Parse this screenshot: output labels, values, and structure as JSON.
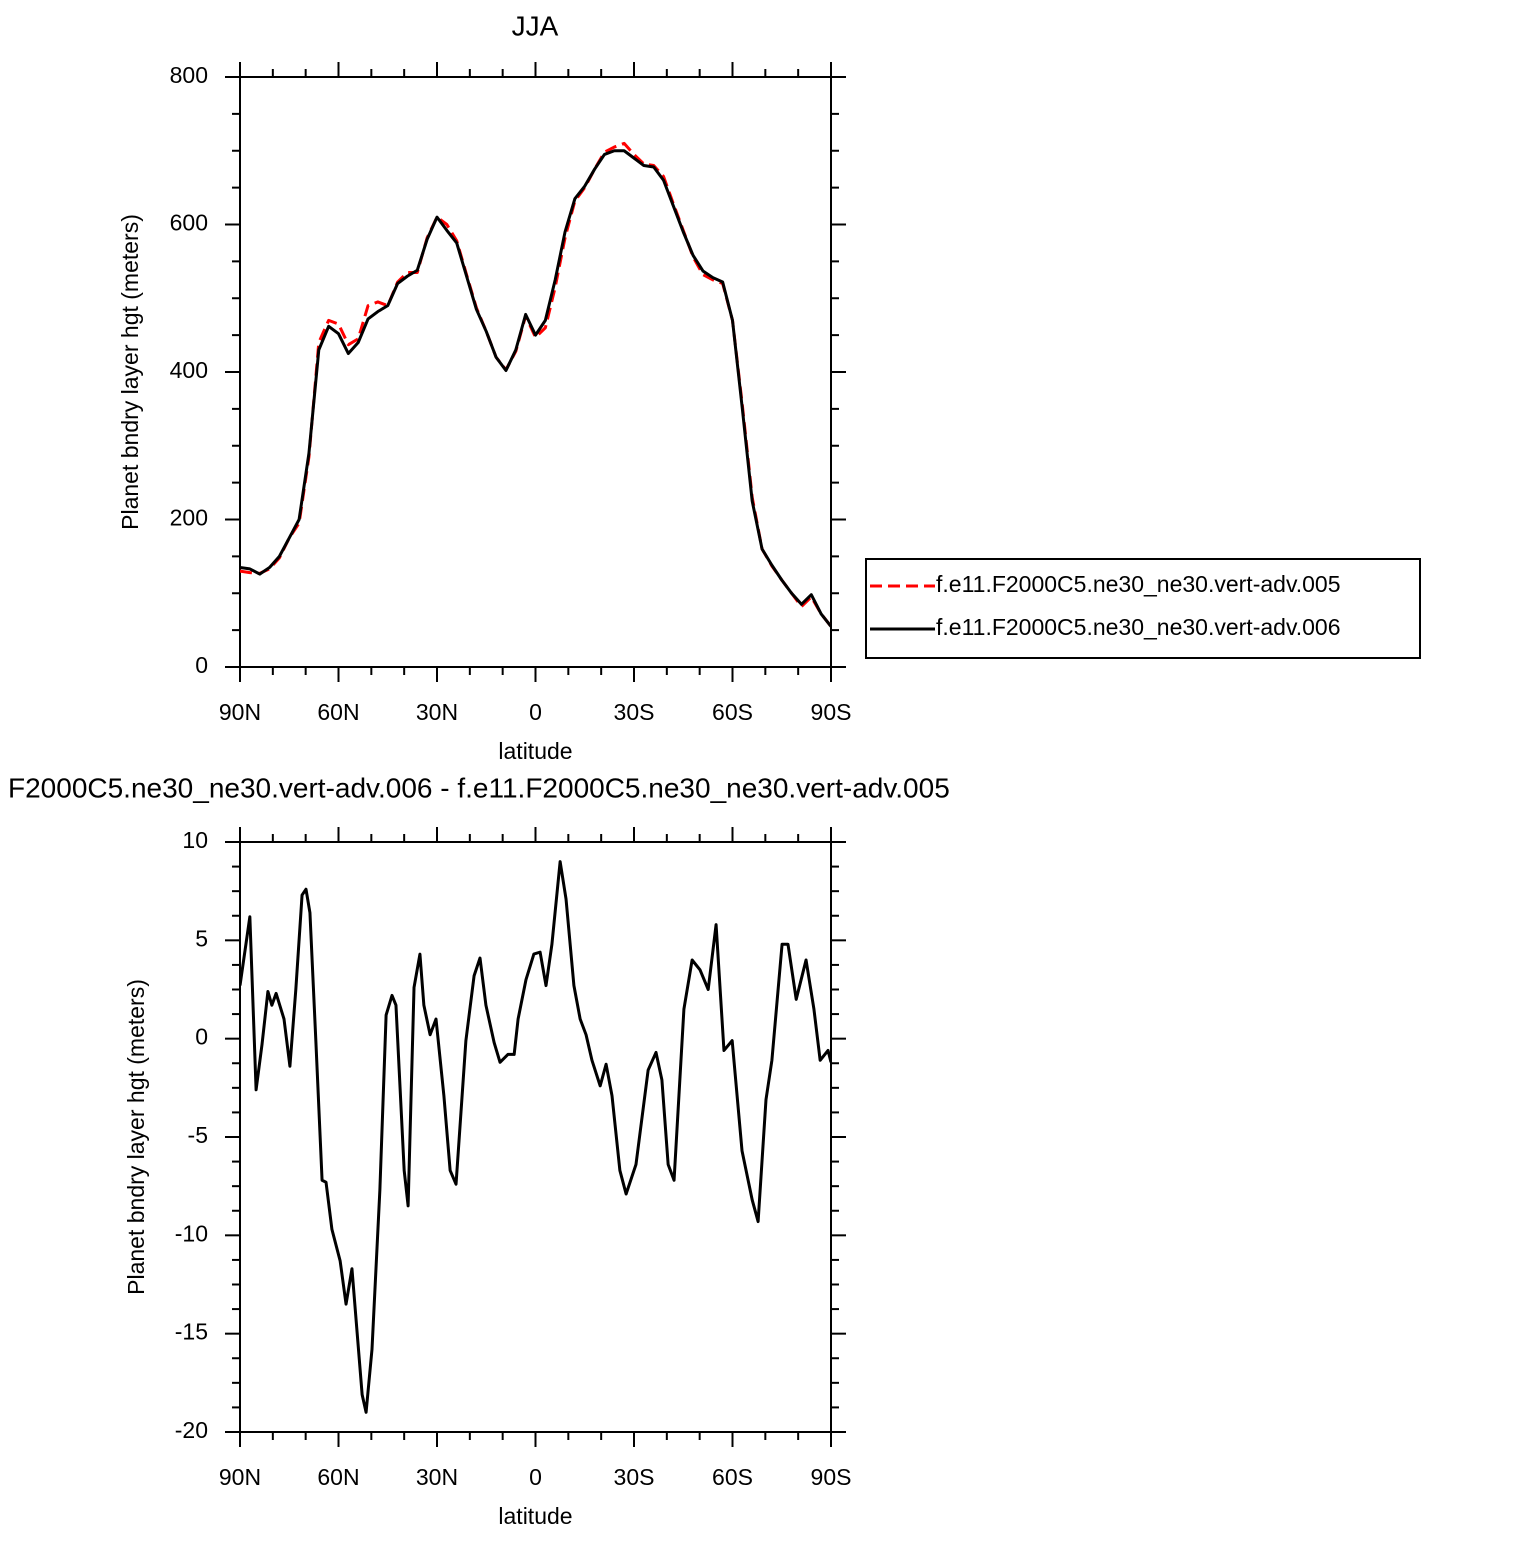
{
  "chart_data": [
    {
      "type": "line",
      "title": "JJA",
      "xlabel": "latitude",
      "ylabel": "Planet bndry layer hgt (meters)",
      "x": [
        90,
        87,
        84,
        81,
        78,
        75,
        72,
        69,
        66,
        63,
        60,
        57,
        54,
        51,
        48,
        45,
        42,
        39,
        36,
        33,
        30,
        27,
        24,
        21,
        18,
        15,
        12,
        9,
        6,
        3,
        0,
        -3,
        -6,
        -9,
        -12,
        -15,
        -18,
        -21,
        -24,
        -27,
        -30,
        -33,
        -36,
        -39,
        -42,
        -45,
        -48,
        -51,
        -54,
        -57,
        -60,
        -63,
        -66,
        -69,
        -72,
        -75,
        -78,
        -81,
        -84,
        -87,
        -90
      ],
      "series": [
        {
          "name": "f.e11.F2000C5.ne30_ne30.vert-adv.005",
          "color": "#ff0000",
          "dash": "dashed",
          "values": [
            130,
            128,
            127,
            133,
            148,
            175,
            195,
            285,
            440,
            470,
            465,
            437,
            445,
            490,
            495,
            490,
            522,
            535,
            535,
            582,
            610,
            600,
            578,
            532,
            487,
            455,
            420,
            403,
            428,
            476,
            447,
            460,
            515,
            582,
            632,
            650,
            675,
            698,
            705,
            710,
            695,
            682,
            680,
            665,
            628,
            592,
            556,
            532,
            525,
            520,
            470,
            355,
            230,
            160,
            137,
            118,
            100,
            82,
            95,
            72,
            55
          ]
        },
        {
          "name": "f.e11.F2000C5.ne30_ne30.vert-adv.006",
          "color": "#000000",
          "dash": "solid",
          "values": [
            135,
            133,
            126,
            135,
            150,
            175,
            200,
            290,
            430,
            462,
            452,
            425,
            440,
            472,
            482,
            490,
            520,
            530,
            538,
            580,
            610,
            592,
            575,
            530,
            485,
            455,
            420,
            402,
            430,
            478,
            450,
            470,
            525,
            590,
            635,
            652,
            675,
            695,
            700,
            700,
            690,
            680,
            678,
            660,
            625,
            590,
            558,
            537,
            528,
            522,
            470,
            350,
            225,
            160,
            138,
            118,
            100,
            85,
            98,
            72,
            55
          ]
        }
      ],
      "xlim": [
        90,
        -90
      ],
      "xticks": [
        {
          "value": 90,
          "label": "90N"
        },
        {
          "value": 60,
          "label": "60N"
        },
        {
          "value": 30,
          "label": "30N"
        },
        0,
        {
          "value": -30,
          "label": "30S"
        },
        {
          "value": -60,
          "label": "60S"
        },
        {
          "value": -90,
          "label": "90S"
        }
      ],
      "ylim": [
        0,
        800
      ],
      "yticks": [
        0,
        200,
        400,
        600,
        800
      ],
      "legend": "right",
      "grid": false
    },
    {
      "type": "line",
      "title": "F2000C5.ne30_ne30.vert-adv.006 - f.e11.F2000C5.ne30_ne30.vert-adv.005",
      "xlabel": "latitude",
      "ylabel": "Planet bndry layer hgt (meters)",
      "x": [
        90,
        87,
        85.1,
        83.3,
        81.5,
        80.3,
        79,
        76.6,
        74.8,
        73,
        71.1,
        69.9,
        68.7,
        66.9,
        65,
        63.8,
        62,
        59.5,
        57.7,
        55.9,
        52.8,
        51.6,
        49.8,
        47.4,
        45.5,
        43.7,
        42.5,
        40,
        38.8,
        37,
        35.2,
        34,
        32.1,
        30.3,
        27.9,
        26,
        24.2,
        21.2,
        18.7,
        16.9,
        15.1,
        12.6,
        10.8,
        8.4,
        6.5,
        5.3,
        2.9,
        0.5,
        -1.4,
        -3.2,
        -5,
        -7.5,
        -9.3,
        -11.7,
        -13.6,
        -15.4,
        -17.2,
        -19.7,
        -21.5,
        -23.3,
        -25.7,
        -27.6,
        -30.6,
        -34.3,
        -36.7,
        -38.5,
        -40.4,
        -42.2,
        -45.2,
        -47.7,
        -50.1,
        -52.6,
        -55,
        -57.4,
        -59.9,
        -62.9,
        -66,
        -67.8,
        -70.2,
        -72,
        -75.1,
        -76.9,
        -79.4,
        -82.4,
        -84.8,
        -86.7,
        -89.1,
        -90
      ],
      "series": [
        {
          "color": "#000000",
          "dash": "solid",
          "values": [
            2.7,
            6.2,
            -2.6,
            -0.3,
            2.4,
            1.7,
            2.3,
            1.0,
            -1.4,
            2.5,
            7.3,
            7.6,
            6.4,
            -0.1,
            -7.2,
            -7.3,
            -9.7,
            -11.3,
            -13.5,
            -11.7,
            -18.1,
            -19.0,
            -15.8,
            -7.7,
            1.2,
            2.2,
            1.7,
            -6.7,
            -8.5,
            2.6,
            4.3,
            1.7,
            0.2,
            1.0,
            -2.9,
            -6.7,
            -7.4,
            -0.1,
            3.2,
            4.1,
            1.7,
            -0.2,
            -1.2,
            -0.8,
            -0.8,
            1.0,
            3.0,
            4.3,
            4.4,
            2.7,
            4.8,
            9.0,
            7.1,
            2.7,
            1.0,
            0.2,
            -1.1,
            -2.4,
            -1.3,
            -2.9,
            -6.7,
            -7.9,
            -6.4,
            -1.6,
            -0.7,
            -2.1,
            -6.4,
            -7.2,
            1.5,
            4.0,
            3.5,
            2.5,
            5.8,
            -0.6,
            -0.1,
            -5.7,
            -8.2,
            -9.3,
            -3.1,
            -1.1,
            4.8,
            4.8,
            2.0,
            4.0,
            1.5,
            -1.1,
            -0.6,
            -1.2
          ]
        }
      ],
      "xlim": [
        90,
        -90
      ],
      "xticks": [
        {
          "value": 90,
          "label": "90N"
        },
        {
          "value": 60,
          "label": "60N"
        },
        {
          "value": 30,
          "label": "30N"
        },
        0,
        {
          "value": -30,
          "label": "30S"
        },
        {
          "value": -60,
          "label": "60S"
        },
        {
          "value": -90,
          "label": "90S"
        }
      ],
      "ylim": [
        -20,
        10
      ],
      "yticks": [
        -20,
        -15,
        -10,
        -5,
        0,
        5,
        10
      ],
      "grid": false
    }
  ]
}
